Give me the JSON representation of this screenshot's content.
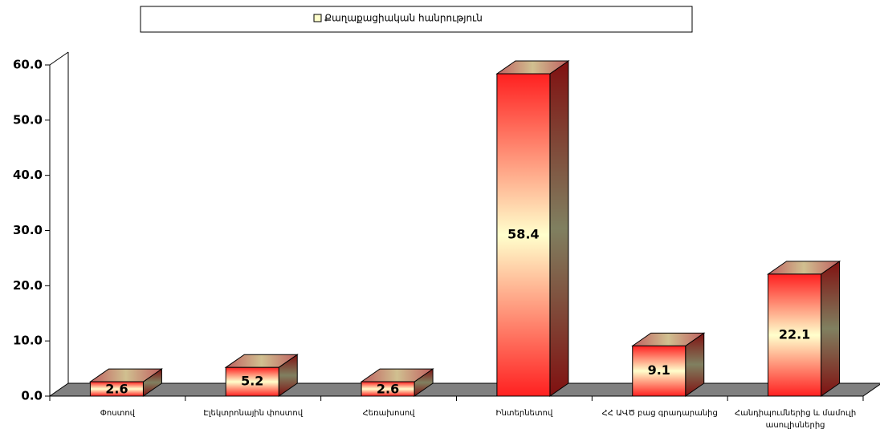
{
  "chart_data": {
    "type": "bar3d",
    "legend": {
      "name": "Քաղաքացիական հանրություն"
    },
    "categories": [
      "Փոստով",
      "Էլեկտրոնային փոստով",
      "Հեռախոսով",
      "Ինտերնետով",
      "ՀՀ ԱՎԾ բաց գրադարանից",
      "Հանդիպումներից և մամուլի ասուլիսներից"
    ],
    "values": [
      2.6,
      5.2,
      2.6,
      58.4,
      9.1,
      22.1
    ],
    "ylim": [
      0,
      60
    ],
    "yticks": [
      {
        "value": 0,
        "label": "0.0"
      },
      {
        "value": 10,
        "label": "10.0"
      },
      {
        "value": 20,
        "label": "20.0"
      },
      {
        "value": 30,
        "label": "30.0"
      },
      {
        "value": 40,
        "label": "40.0"
      },
      {
        "value": 50,
        "label": "50.0"
      },
      {
        "value": 60,
        "label": "60.0"
      }
    ]
  }
}
